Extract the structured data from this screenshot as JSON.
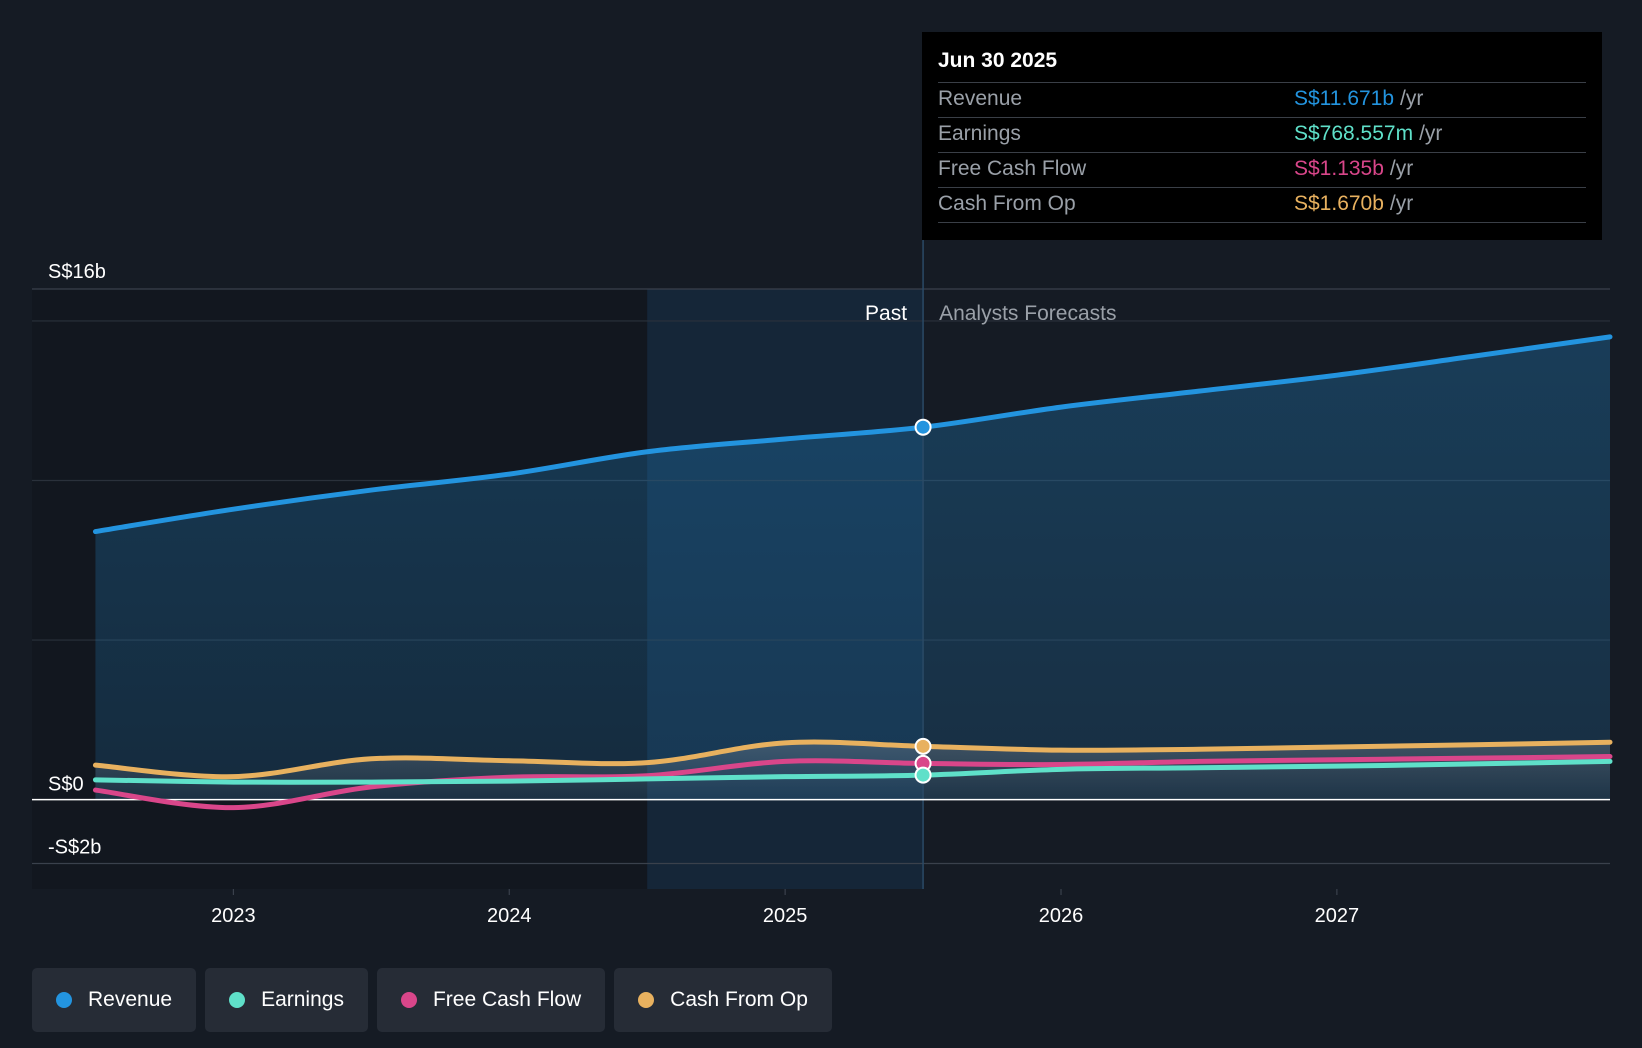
{
  "colors": {
    "background": "#151b24",
    "revenue": "#2394df",
    "earnings": "#5fe0c9",
    "free_cash_flow": "#d9468a",
    "cash_from_op": "#e8b15f"
  },
  "tooltip": {
    "date": "Jun 30 2025",
    "rows": [
      {
        "label": "Revenue",
        "value": "S$11.671b",
        "unit": "/yr",
        "color": "#2394df"
      },
      {
        "label": "Earnings",
        "value": "S$768.557m",
        "unit": "/yr",
        "color": "#5fe0c9"
      },
      {
        "label": "Free Cash Flow",
        "value": "S$1.135b",
        "unit": "/yr",
        "color": "#d9468a"
      },
      {
        "label": "Cash From Op",
        "value": "S$1.670b",
        "unit": "/yr",
        "color": "#e8b15f"
      }
    ]
  },
  "legend": [
    {
      "label": "Revenue",
      "color": "#2394df"
    },
    {
      "label": "Earnings",
      "color": "#5fe0c9"
    },
    {
      "label": "Free Cash Flow",
      "color": "#d9468a"
    },
    {
      "label": "Cash From Op",
      "color": "#e8b15f"
    }
  ],
  "chart_data": {
    "type": "line",
    "title": "",
    "xlabel": "",
    "ylabel": "",
    "ylim": [
      -2.8,
      16
    ],
    "xlim": [
      2022.27,
      2027.99
    ],
    "y_tick_labels": [
      {
        "value": 16,
        "label": "S$16b"
      },
      {
        "value": 0,
        "label": "S$0"
      },
      {
        "value": -2,
        "label": "-S$2b"
      }
    ],
    "x_ticks": [
      2023,
      2024,
      2025,
      2026,
      2027
    ],
    "x_tick_labels": [
      "2023",
      "2024",
      "2025",
      "2026",
      "2027"
    ],
    "past_start": 2024.5,
    "divider": 2025.5,
    "past_label": "Past",
    "forecast_label": "Analysts Forecasts",
    "series": [
      {
        "name": "Revenue",
        "key": "revenue",
        "x": [
          2022.5,
          2023.0,
          2023.5,
          2024.0,
          2024.5,
          2025.0,
          2025.5,
          2026.0,
          2026.5,
          2027.0,
          2027.5,
          2027.99
        ],
        "values": [
          8.4,
          9.1,
          9.7,
          10.2,
          10.9,
          11.3,
          11.67,
          12.3,
          12.8,
          13.3,
          13.9,
          14.5
        ]
      },
      {
        "name": "Earnings",
        "key": "earnings",
        "x": [
          2022.5,
          2023.0,
          2023.5,
          2024.0,
          2024.5,
          2025.0,
          2025.5,
          2026.0,
          2026.5,
          2027.0,
          2027.5,
          2027.99
        ],
        "values": [
          0.62,
          0.55,
          0.55,
          0.58,
          0.65,
          0.72,
          0.77,
          0.95,
          1.0,
          1.05,
          1.12,
          1.2
        ]
      },
      {
        "name": "Free Cash Flow",
        "key": "free_cash_flow",
        "x": [
          2022.5,
          2023.0,
          2023.5,
          2024.0,
          2024.5,
          2025.0,
          2025.5,
          2026.0,
          2026.5,
          2027.0,
          2027.5,
          2027.99
        ],
        "values": [
          0.3,
          -0.25,
          0.4,
          0.7,
          0.75,
          1.2,
          1.135,
          1.1,
          1.2,
          1.25,
          1.3,
          1.35
        ]
      },
      {
        "name": "Cash From Op",
        "key": "cash_from_op",
        "x": [
          2022.5,
          2023.0,
          2023.5,
          2024.0,
          2024.5,
          2025.0,
          2025.5,
          2026.0,
          2026.5,
          2027.0,
          2027.5,
          2027.99
        ],
        "values": [
          1.08,
          0.72,
          1.28,
          1.22,
          1.16,
          1.78,
          1.67,
          1.55,
          1.58,
          1.65,
          1.72,
          1.8
        ]
      }
    ]
  }
}
